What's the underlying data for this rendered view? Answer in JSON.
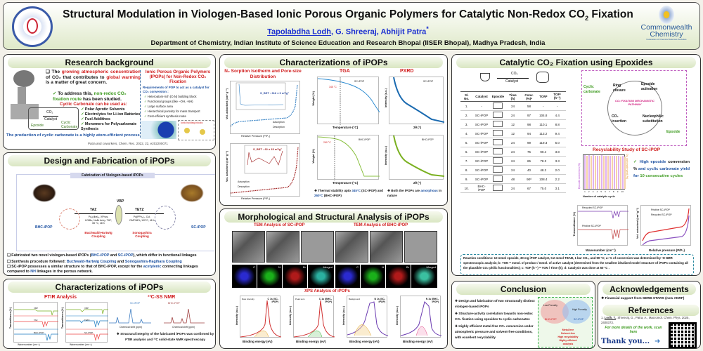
{
  "header": {
    "title": "Structural Modulation in Viologen-Based Ionic Porous Organic Polymers for Catalytic Non-Redox CO",
    "title_sub": "2",
    "title_end": " Fixation",
    "authors": [
      {
        "name": "Tapolabdha Lodh"
      },
      {
        "name": ", G. Shreeraj, Abhijit Patra"
      },
      {
        "name": "*"
      }
    ],
    "affiliation": "Department of Chemistry, Indian Institute of Science Education and Research Bhopal (IISER Bhopal), Madhya Pradesh, India",
    "logo_left": "IISER Bhopal",
    "logo_right": "Commonwealth Chemistry",
    "logo_right_sub": "Federation of Chemical Sciences Societies"
  },
  "research": {
    "title": "Research background",
    "p1a": "The ",
    "p1b": "growing atmospheric concentration",
    "p1c": " of CO₂ that contributes to ",
    "p1d": "global warming",
    "p1e": " is a matter of great concern.",
    "p2a": "To address this, ",
    "p2b": "non-redox CO₂ fixation route",
    "p2c": " has been studied.",
    "cc_title": "Cyclic Carbonate can be used as:",
    "uses": [
      "Polar Aprotic Solvents",
      "Electrolytes for Li-ion Batteries",
      "Fuel Additives",
      "Monomers for Polycarbonate Synthesis"
    ],
    "scheme": {
      "epoxide": "Epoxide",
      "co2": "CO₂",
      "catalyst": "Catalyst",
      "product": "Cyclic Carbonate"
    },
    "bottom": "The production of cyclic carbonate is a highly atom-efficient process",
    "right_title": "Ionic Porous Organic Polymers (IPOPs) for Non-Redox CO₂ Fixation",
    "req_title": "Requirements of POP to act as a catalyst for CO₂ conversion :",
    "reqs": [
      "Heteroatom-rich (O,N) building block",
      "Functional groups (like –OH, -NH)",
      "Large surface area",
      "Hierarchical porosity for mass transport",
      "Cost-efficient synthesis route"
    ],
    "blocks_label": "Ionic building blocks",
    "ref": "Patra and coworkers, Chem. Rec. 2022, 22, e202200071"
  },
  "design": {
    "title": "Design and Fabrication of iPOPs",
    "fig_title": "Fabrication of Viologen-based iPOPs",
    "left_name": "BHC-iPOP",
    "right_name": "SC-iPOP",
    "taz": "TAZ",
    "tetz": "TETZ",
    "vbp": "VBP",
    "left_cond": "Pd₂(dba)₃, XPhos, KOtBu, NaBr Anhy. THF, 65 °C, 48 h",
    "right_cond": "Pd(PPh₃)₄, CuI, DMF/NEt₃ 100°C, 48 h",
    "left_rxn": "Buchwald-Hartwig Coupling",
    "right_rxn": "Sonogashira Coupling",
    "b1a": "Fabricated two novel viologen-based iPOPs (",
    "b1b": "BHC-iPOP",
    "b1c": " and ",
    "b1d": "SC-iPOP",
    "b1e": "), which differ in functional linkages",
    "b2a": "Synthesis procedure followed: ",
    "b2b": "Buchwald-Hartwig Coupling",
    "b2c": " and ",
    "b2d": "Sonogashira-Hagihara Coupling",
    "b3a": "SC-iPOP possesses a similar structure to that of BHC-iPOP, except for the ",
    "b3b": "acetylenic",
    "b3c": " connecting linkages compared to ",
    "b3d": "NH",
    "b3e": " linkages in the porous network."
  },
  "charleft": {
    "title": "Characterizations of iPOPs",
    "ftir": "FTIR Analysis",
    "nmr": "¹³C-SS NMR",
    "ylabel": "Transmittance (%)",
    "xlabel": "Wavenumber (cm⁻¹)",
    "nmr_x": "Chemical shift (ppm)",
    "legend1": [
      "VBP",
      "TAZ",
      "BHC-iPOP"
    ],
    "legend2": [
      "VBP",
      "TETZ",
      "SC-iPOP"
    ],
    "nmr1": "SC-iPOP",
    "nmr2": "BHC-iPOP",
    "note": "Structural integrity of the fabricated iPOPs was confirmed by FTIR analysis and ¹³C solid-state NMR spectroscopy"
  },
  "charmid": {
    "title": "Characterizations of iPOPs",
    "n2": "N₂ Sorption Isotherm and Pore-size Distribution",
    "tga": "TGA",
    "pxrd": "PXRD",
    "sc_bet": "S_BET : 616 ± 9 m²/g²",
    "bhc_bet": "S_BET : 62 ± 15 m²/g²",
    "ads": "Adsorption",
    "des": "Desorption",
    "rel_p": "Relative Pressure (P/P₀)",
    "vol": "Vol. adsorbed (cm³ g⁻¹)",
    "temp": "Temperature (°C)",
    "weight": "Weight (%)",
    "two_theta": "2θ (°)",
    "intensity": "Intensity (a.u.)",
    "sc": "SC-iPOP",
    "bhc": "BHC-iPOP",
    "t_sc": "345 °C",
    "t_bhc": "260 °C",
    "tga_note_a": "Thermal stability upto ",
    "tga_note_b": "345°C",
    "tga_note_c": " (SC-iPOP) and ",
    "tga_note_d": "260°C",
    "tga_note_e": " (BHC-iPOP)",
    "pxrd_note_a": "Both the iPOPs are ",
    "pxrd_note_b": "amorphous",
    "pxrd_note_c": " in nature"
  },
  "morph": {
    "title": "Morphological and Structural Analysis of iPOPs",
    "tem_sc": "TEM Analysis of SC-iPOP",
    "tem_bhc": "TEM Analysis of BHC-iPOP",
    "maps_sc": [
      "C",
      "N",
      "Br",
      "Merged"
    ],
    "maps_bhc": [
      "C",
      "N",
      "Br",
      "Merged"
    ],
    "xps": "XPS Analysis of iPOPs",
    "xps_panels": [
      {
        "label": "C 1s (SC-iPOP)"
      },
      {
        "label": "C 1s (BHC-iPOP)"
      },
      {
        "label": "N 1s (SC-iPOP)"
      },
      {
        "label": "N 1s (BHC-iPOP)"
      }
    ],
    "xps_x": "Binding energy (eV)",
    "xps_y": "Intensity (a.u.)",
    "xps_legend": [
      "Raw intensity",
      "Peak sum",
      "Background"
    ]
  },
  "catalytic": {
    "title": "Catalytic CO₂ Fixation using Epoxides",
    "scheme_co2": "CO₂",
    "scheme_cat": "Catalyst",
    "headers": [
      "Sl. No.",
      "Catalyst",
      "Epoxide",
      "Time (h)",
      "Conv. (%)ᵃ",
      "TONᵇ",
      "TOFᶜ (h⁻¹)"
    ],
    "rows": [
      [
        "1.",
        "-",
        "",
        "24",
        "58",
        "-",
        "-"
      ],
      [
        "2.",
        "SC-iPOP",
        "",
        "24",
        "97",
        "104.8",
        "4.4"
      ],
      [
        "3.",
        "SC-iPOP",
        "",
        "12",
        "98",
        "110.1",
        "8.8"
      ],
      [
        "4.",
        "SC-iPOP",
        "",
        "12",
        "94",
        "113.2",
        "9.4"
      ],
      [
        "5.",
        "SC-iPOP",
        "",
        "24",
        "99",
        "119.3",
        "5.0"
      ],
      [
        "6.",
        "SC-iPOP",
        "",
        "24",
        "75",
        "90.4",
        "3.8"
      ],
      [
        "7.",
        "SC-iPOP",
        "",
        "24",
        "65",
        "78.3",
        "3.3"
      ],
      [
        "8.",
        "SC-iPOP",
        "",
        "24",
        "40",
        "48.2",
        "2.0"
      ],
      [
        "9.",
        "SC-iPOP",
        "",
        "48",
        "90ᵈ",
        "108.4",
        "2.2"
      ],
      [
        "10.",
        "BHC-iPOP",
        "",
        "24",
        "67",
        "75.0",
        "3.1"
      ]
    ],
    "mech": {
      "center": "CO₂ FIXATION MECHANISTIC PATHWAY",
      "steps": [
        "Epoxide activation",
        "Nucleophilic substitution",
        "CO₂ insertion",
        "Ring closure"
      ],
      "cyclic": "Cyclic carbonate",
      "epoxide": "Epoxide"
    },
    "recyc_title": "Recyclability Study of SC-iPOP",
    "recyc_x": "Number of catalytic cycle",
    "recyc_y1": "Epoxide conversion (%)",
    "recyc_y2": "Cy. carbonate yield (%)",
    "cycles": [
      "1",
      "2",
      "3",
      "4",
      "5",
      "6",
      "7",
      "8",
      "9",
      "10"
    ],
    "recyc_conv": [
      99,
      99,
      99,
      98,
      99,
      98,
      98,
      98,
      97,
      97
    ],
    "recyc_yield": [
      98,
      98,
      98,
      97,
      98,
      97,
      97,
      97,
      96,
      96
    ],
    "note_a": "High epoxide ",
    "note_b": "conversion %",
    "note_c": " and cyclic carbonate yield for ",
    "note_d": "10 consecutive cycles",
    "ftir_legend": [
      "Recycled SC-iPOP",
      "Pristine SC-iPOP"
    ],
    "ftir_x": "Wavenumber (cm⁻¹)",
    "ftir_y": "Transmittance (%)",
    "iso_legend": [
      "Pristine SC-iPOP",
      "Recycled SC-iPOP"
    ],
    "iso_x": "Relative pressure (P/P₀)",
    "iso_y": "Vol. adsorbed (cm³ g⁻¹)",
    "footnote": "Reaction conditions: 10 mmol epoxide, 30 mg iPOP catalyst, 0.2 mmol TBAB, 1 bar CO₂, and 90 °C; a: % of conversion was determined by ¹H NMR spectroscopic analysis; b: TON = mmol. of product / mmol. of active catalyst (determined from the smallest idealized model structure of iPOPs containing all the plausible CO₂-philic functionalities); c: TOF (h⁻¹) = TON / Time (h); d: Catalysis was done at 50 °C ."
  },
  "conclusion": {
    "title": "Conclusion",
    "points": [
      "Design and fabrication of two structurally distinct viologen-based iPOPs",
      "Structure-activity correlation towards non-redox CO₂ fixation using epoxides to cyclic carbonates",
      "Highly efficient metal-free CO₂ conversion under atmospheric pressure and solvent-free conditions, with excellent recyclability"
    ],
    "fig": {
      "low": "Low Porosity",
      "high": "High Porosity",
      "bhc": "BHC-iPOP",
      "sc": "SC-iPOP",
      "labels": [
        "Metal-free",
        "Solvent-free",
        "High recyclability",
        "Highly efficient catalysis"
      ]
    }
  },
  "ack": {
    "title": "Acknowledgements",
    "text": "Financial support from SERB-STARS (now ANRF)"
  },
  "refs": {
    "title": "References",
    "num": "1.",
    "author": "Lodh, T.",
    "rest": ", Shreeraj, G., Patra, A., Macromol. Chem. Phys. 2025, 2400373.",
    "scan": "For more details of the work, scan here",
    "thanks": "Thank you..."
  },
  "colors": {
    "accent_red": "#d01c1c",
    "accent_blue": "#1a4fa0",
    "accent_green": "#3c9a1e",
    "title_green": "#d9e6c2"
  }
}
